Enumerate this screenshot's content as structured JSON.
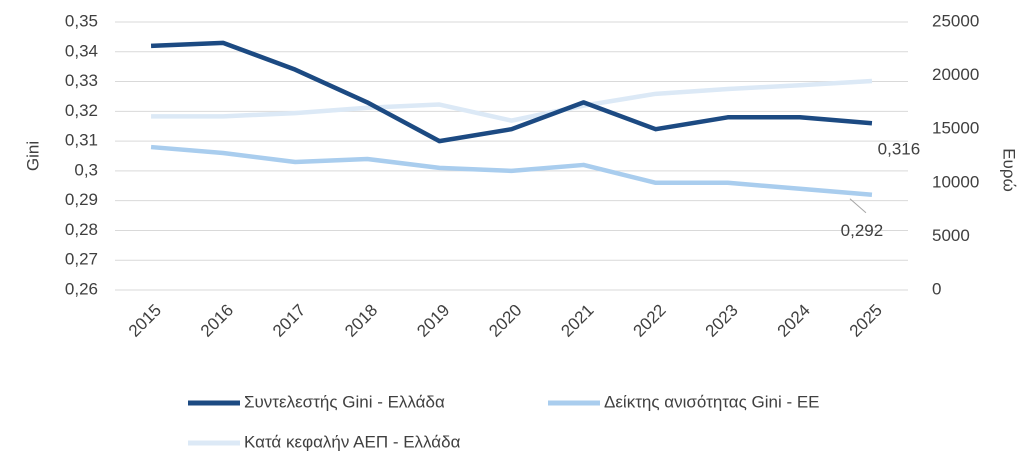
{
  "chart_data": {
    "type": "line",
    "categories": [
      "2015",
      "2016",
      "2017",
      "2018",
      "2019",
      "2020",
      "2021",
      "2022",
      "2023",
      "2024",
      "2025"
    ],
    "ylabel": "Gini",
    "y2label": "Ευρώ",
    "ylim": [
      0.26,
      0.35
    ],
    "yticks": [
      {
        "value": 0.26,
        "label": "0,26"
      },
      {
        "value": 0.27,
        "label": "0,27"
      },
      {
        "value": 0.28,
        "label": "0,28"
      },
      {
        "value": 0.29,
        "label": "0,29"
      },
      {
        "value": 0.3,
        "label": "0,3"
      },
      {
        "value": 0.31,
        "label": "0,31"
      },
      {
        "value": 0.32,
        "label": "0,32"
      },
      {
        "value": 0.33,
        "label": "0,33"
      },
      {
        "value": 0.34,
        "label": "0,34"
      },
      {
        "value": 0.35,
        "label": "0,35"
      }
    ],
    "y2lim": [
      0,
      25000
    ],
    "y2ticks": [
      0,
      5000,
      10000,
      15000,
      20000,
      25000
    ],
    "grid": true,
    "legend": "bottom",
    "series": [
      {
        "name": "Συντελεστής Gini - Ελλάδα",
        "color": "#1c4a82",
        "values": [
          0.342,
          0.343,
          0.334,
          0.323,
          0.31,
          0.314,
          0.323,
          0.314,
          0.318,
          0.318,
          0.316
        ],
        "value_labels": [
          null,
          null,
          null,
          null,
          null,
          null,
          null,
          null,
          null,
          null,
          "0,316"
        ]
      },
      {
        "name": "Δείκτης ανισότητας Gini - ΕΕ",
        "color": "#a9cdee",
        "values": [
          0.308,
          0.306,
          0.303,
          0.304,
          0.301,
          0.3,
          0.302,
          0.296,
          0.296,
          0.294,
          0.292
        ],
        "value_labels": [
          null,
          null,
          null,
          null,
          null,
          null,
          null,
          null,
          null,
          null,
          "0,292"
        ]
      },
      {
        "name": "Κατά κεφαλήν ΑΕΠ - Ελλάδα",
        "color": "#dce9f6",
        "axis": "y2",
        "values": [
          16200,
          16200,
          16500,
          17000,
          17300,
          15800,
          17200,
          18300,
          18750,
          19100,
          19500
        ]
      }
    ]
  }
}
